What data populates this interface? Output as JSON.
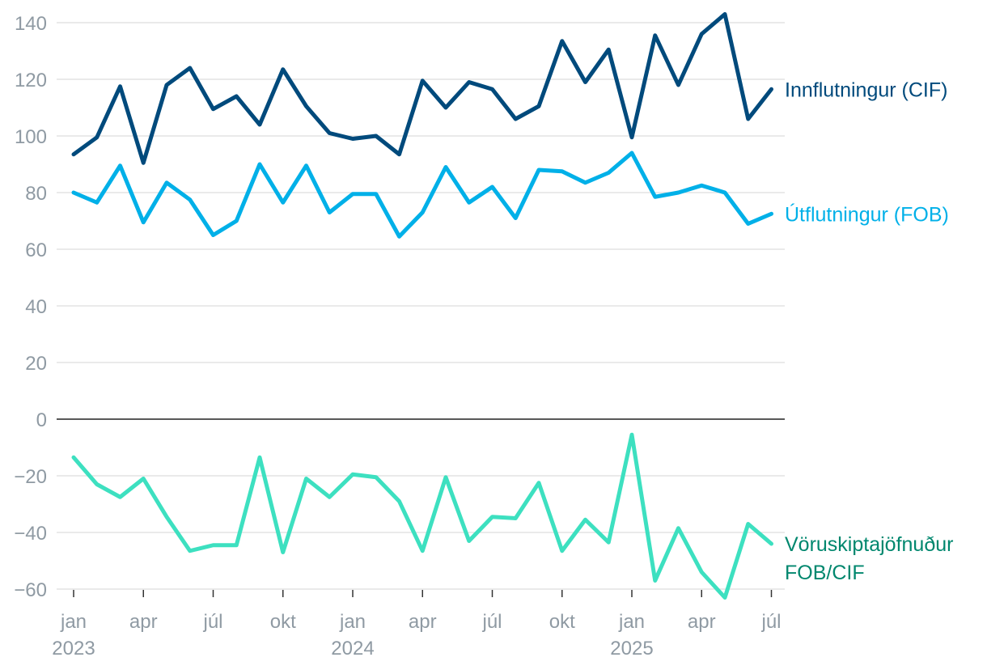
{
  "chart_data": {
    "type": "line",
    "title": "",
    "xlabel": "",
    "ylabel": "",
    "ylim": [
      -65,
      145
    ],
    "yticks": [
      140,
      120,
      100,
      80,
      60,
      40,
      20,
      0,
      -20,
      -40,
      -60
    ],
    "y_tick_labels": [
      "140",
      "120",
      "100",
      "80",
      "60",
      "40",
      "20",
      "0",
      "−20",
      "−40",
      "−60"
    ],
    "grid": true,
    "x_month_labels": [
      {
        "index": 0,
        "label": "jan"
      },
      {
        "index": 3,
        "label": "apr"
      },
      {
        "index": 6,
        "label": "júl"
      },
      {
        "index": 9,
        "label": "okt"
      },
      {
        "index": 12,
        "label": "jan"
      },
      {
        "index": 15,
        "label": "apr"
      },
      {
        "index": 18,
        "label": "júl"
      },
      {
        "index": 21,
        "label": "okt"
      },
      {
        "index": 24,
        "label": "jan"
      },
      {
        "index": 27,
        "label": "apr"
      },
      {
        "index": 30,
        "label": "júl"
      }
    ],
    "x_year_labels": [
      {
        "index": 0,
        "label": "2023"
      },
      {
        "index": 12,
        "label": "2024"
      },
      {
        "index": 24,
        "label": "2025"
      }
    ],
    "series": [
      {
        "name": "Innflutningur (CIF)",
        "color": "#004a7c",
        "values": [
          93.5,
          99.5,
          117.5,
          90.5,
          118,
          124,
          109.5,
          114,
          104,
          123.5,
          110.5,
          101,
          99,
          100,
          93.5,
          119.5,
          110,
          119,
          116.5,
          106,
          110.5,
          133.5,
          119,
          130.5,
          99.5,
          135.5,
          118,
          136,
          143,
          106,
          116.5
        ]
      },
      {
        "name": "Útflutningur (FOB)",
        "color": "#00b0e8",
        "values": [
          80,
          76.5,
          89.5,
          69.5,
          83.5,
          77.5,
          65,
          70,
          90,
          76.5,
          89.5,
          73,
          79.5,
          79.5,
          64.5,
          73,
          89,
          76.5,
          82,
          71,
          88,
          87.5,
          83.5,
          87,
          94,
          78.5,
          80,
          82.5,
          80,
          69,
          72.5
        ]
      },
      {
        "name_lines": [
          "Vöruskiptajöfnuður",
          "FOB/CIF"
        ],
        "color": "#3de0c0",
        "label_color": "#00876e",
        "values": [
          -13.5,
          -23,
          -27.5,
          -21,
          -34.5,
          -46.5,
          -44.5,
          -44.5,
          -13.5,
          -47,
          -21,
          -27.5,
          -19.5,
          -20.5,
          -29,
          -46.5,
          -20.5,
          -43,
          -34.5,
          -35,
          -22.5,
          -46.5,
          -35.5,
          -43.5,
          -5.5,
          -57,
          -38.5,
          -54,
          -63,
          -37,
          -44
        ]
      }
    ]
  }
}
